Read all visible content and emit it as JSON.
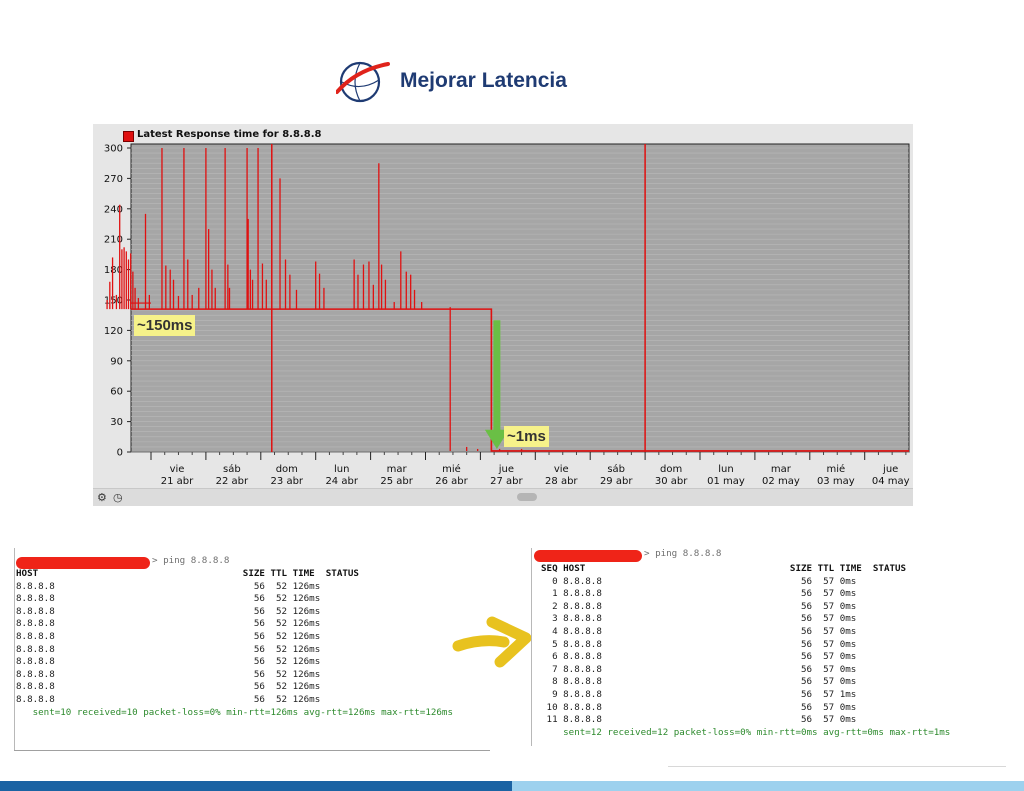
{
  "header": {
    "title": "Mejorar Latencia"
  },
  "chart": {
    "legend": "Latest Response time for 8.8.8.8",
    "annotation_high": "~150ms",
    "annotation_low": "~1ms",
    "controls": {
      "settings": "⚙",
      "clock": "◷"
    }
  },
  "chart_data": {
    "type": "line",
    "title": "Latest Response time for 8.8.8.8",
    "series": [
      {
        "name": "Latest Response time for 8.8.8.8",
        "color": "#e01010"
      }
    ],
    "ylim": [
      0,
      300
    ],
    "yticks": [
      0,
      30,
      60,
      90,
      120,
      150,
      180,
      210,
      240,
      270,
      300
    ],
    "x_days": [
      [
        "vie",
        "21 abr"
      ],
      [
        "sáb",
        "22 abr"
      ],
      [
        "dom",
        "23 abr"
      ],
      [
        "lun",
        "24 abr"
      ],
      [
        "mar",
        "25 abr"
      ],
      [
        "mié",
        "26 abr"
      ],
      [
        "jue",
        "27 abr"
      ],
      [
        "vie",
        "28 abr"
      ],
      [
        "sáb",
        "29 abr"
      ],
      [
        "dom",
        "30 abr"
      ],
      [
        "lun",
        "01 may"
      ],
      [
        "mar",
        "02 may"
      ],
      [
        "mié",
        "03 may"
      ],
      [
        "jue",
        "04 may"
      ]
    ],
    "baseline_before_ms": 141,
    "baseline_after_ms": 1,
    "drop_day": 6.2,
    "spikes": [
      [
        0.05,
        150
      ],
      [
        0.1,
        168
      ],
      [
        0.15,
        192
      ],
      [
        0.22,
        155
      ],
      [
        0.28,
        244
      ],
      [
        0.32,
        200
      ],
      [
        0.36,
        202
      ],
      [
        0.4,
        198
      ],
      [
        0.44,
        190
      ],
      [
        0.48,
        196
      ],
      [
        0.52,
        178
      ],
      [
        0.56,
        162
      ],
      [
        0.62,
        152
      ],
      [
        0.75,
        235
      ],
      [
        0.82,
        155
      ],
      [
        1.05,
        301
      ],
      [
        1.12,
        184
      ],
      [
        1.2,
        180
      ],
      [
        1.26,
        170
      ],
      [
        1.35,
        154
      ],
      [
        1.45,
        300
      ],
      [
        1.52,
        190
      ],
      [
        1.6,
        155
      ],
      [
        1.72,
        162
      ],
      [
        1.85,
        300
      ],
      [
        1.9,
        220
      ],
      [
        1.96,
        180
      ],
      [
        2.02,
        162
      ],
      [
        2.2,
        300
      ],
      [
        2.25,
        185
      ],
      [
        2.28,
        162
      ],
      [
        2.6,
        300
      ],
      [
        2.62,
        230
      ],
      [
        2.66,
        180
      ],
      [
        2.7,
        170
      ],
      [
        2.8,
        300
      ],
      [
        2.88,
        186
      ],
      [
        2.95,
        170
      ],
      [
        3.2,
        270
      ],
      [
        3.3,
        190
      ],
      [
        3.38,
        175
      ],
      [
        3.5,
        160
      ],
      [
        3.85,
        188
      ],
      [
        3.92,
        176
      ],
      [
        4.0,
        162
      ],
      [
        4.55,
        190
      ],
      [
        4.62,
        175
      ],
      [
        4.72,
        185
      ],
      [
        4.82,
        188
      ],
      [
        4.9,
        165
      ],
      [
        5.0,
        285
      ],
      [
        5.05,
        185
      ],
      [
        5.12,
        170
      ],
      [
        5.28,
        148
      ],
      [
        5.4,
        198
      ],
      [
        5.5,
        178
      ],
      [
        5.58,
        175
      ],
      [
        5.65,
        160
      ],
      [
        5.78,
        148
      ],
      [
        6.3,
        143
      ],
      [
        6.6,
        5
      ],
      [
        6.8,
        3
      ],
      [
        7.2,
        3
      ],
      [
        7.6,
        3
      ]
    ],
    "gridlines": true,
    "legend_position": "top-left"
  },
  "terminal_left": {
    "prompt": "> ping 8.8.8.8",
    "header": "HOST                                     SIZE TTL TIME  STATUS",
    "rows": [
      "8.8.8.8                                    56  52 126ms",
      "8.8.8.8                                    56  52 126ms",
      "8.8.8.8                                    56  52 126ms",
      "8.8.8.8                                    56  52 126ms",
      "8.8.8.8                                    56  52 126ms",
      "8.8.8.8                                    56  52 126ms",
      "8.8.8.8                                    56  52 126ms",
      "8.8.8.8                                    56  52 126ms",
      "8.8.8.8                                    56  52 126ms",
      "8.8.8.8                                    56  52 126ms"
    ],
    "summary": "   sent=10 received=10 packet-loss=0% min-rtt=126ms avg-rtt=126ms max-rtt=126ms"
  },
  "terminal_right": {
    "prompt": "> ping 8.8.8.8",
    "header": "SEQ HOST                                     SIZE TTL TIME  STATUS",
    "rows": [
      "  0 8.8.8.8                                    56  57 0ms",
      "  1 8.8.8.8                                    56  57 0ms",
      "  2 8.8.8.8                                    56  57 0ms",
      "  3 8.8.8.8                                    56  57 0ms",
      "  4 8.8.8.8                                    56  57 0ms",
      "  5 8.8.8.8                                    56  57 0ms",
      "  6 8.8.8.8                                    56  57 0ms",
      "  7 8.8.8.8                                    56  57 0ms",
      "  8 8.8.8.8                                    56  57 0ms",
      "  9 8.8.8.8                                    56  57 1ms",
      " 10 8.8.8.8                                    56  57 0ms",
      " 11 8.8.8.8                                    56  57 0ms"
    ],
    "summary": "    sent=12 received=12 packet-loss=0% min-rtt=0ms avg-rtt=0ms max-rtt=1ms"
  },
  "colors": {
    "title": "#1f3b73",
    "series": "#e01010",
    "plot_bg": "#a6a6a6",
    "band_dark": "#1b63a3",
    "band_light": "#9dd1ee",
    "annotation": "#f6f28a",
    "summary_green": "#2d8a2d"
  },
  "icons": {
    "logo": "globe-swoosh-logo",
    "arrow_down": "green-down-arrow",
    "arrow_right": "yellow-right-arrow"
  }
}
